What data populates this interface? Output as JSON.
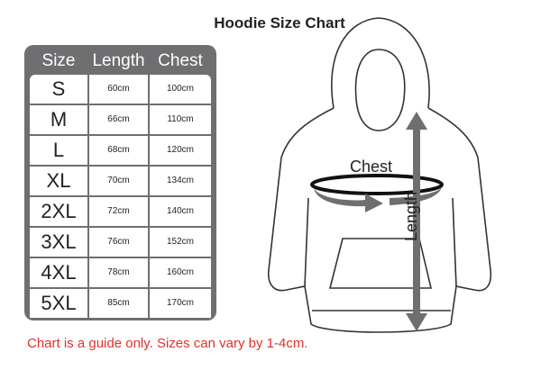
{
  "title": "Hoodie Size Chart",
  "table": {
    "headers": [
      "Size",
      "Length",
      "Chest"
    ],
    "rows": [
      [
        "S",
        "60cm",
        "100cm"
      ],
      [
        "M",
        "66cm",
        "110cm"
      ],
      [
        "L",
        "68cm",
        "120cm"
      ],
      [
        "XL",
        "70cm",
        "134cm"
      ],
      [
        "2XL",
        "72cm",
        "140cm"
      ],
      [
        "3XL",
        "76cm",
        "152cm"
      ],
      [
        "4XL",
        "78cm",
        "160cm"
      ],
      [
        "5XL",
        "85cm",
        "170cm"
      ]
    ]
  },
  "diagram": {
    "chest_label": "Chest",
    "length_label": "Length",
    "arrow_color": "#6f6f72"
  },
  "footnote": "Chart is a guide only. Sizes can vary by 1-4cm.",
  "colors": {
    "table_bg": "#6f6f72",
    "footnote": "#e0302c"
  }
}
